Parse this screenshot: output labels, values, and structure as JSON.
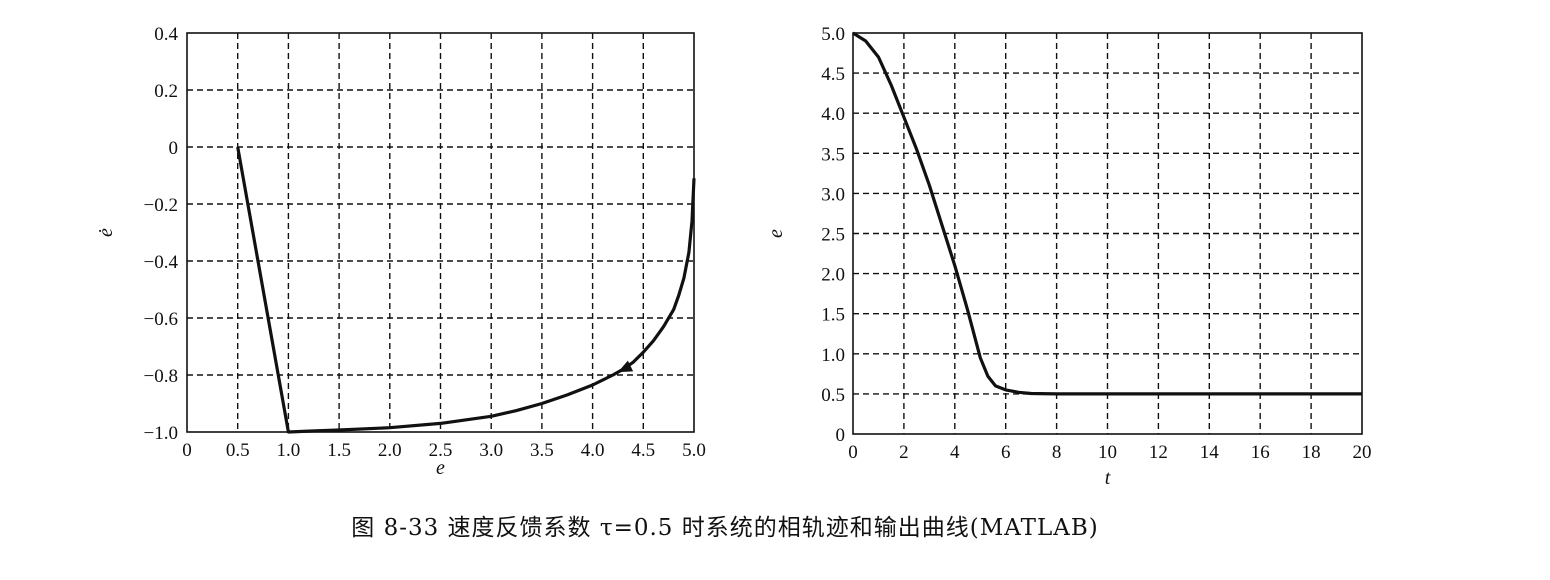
{
  "caption": "图 8-33   速度反馈系数 τ=0.5 时系统的相轨迹和输出曲线(MATLAB)",
  "chart_data": [
    {
      "type": "line",
      "title": "",
      "xlabel": "e",
      "ylabel": "ė",
      "xlim": [
        0,
        5.0
      ],
      "ylim": [
        -1.0,
        0.4
      ],
      "x_ticks": [
        0,
        0.5,
        1.0,
        1.5,
        2.0,
        2.5,
        3.0,
        3.5,
        4.0,
        4.5,
        5.0
      ],
      "x_tick_labels": [
        "0",
        "0.5",
        "1.0",
        "1.5",
        "2.0",
        "2.5",
        "3.0",
        "3.5",
        "4.0",
        "4.5",
        "5.0"
      ],
      "y_ticks": [
        -1.0,
        -0.8,
        -0.6,
        -0.4,
        -0.2,
        0,
        0.2,
        0.4
      ],
      "y_tick_labels": [
        "−1.0",
        "−0.8",
        "−0.6",
        "−0.4",
        "−0.2",
        "0",
        "0.2",
        "0.4"
      ],
      "grid": true,
      "series": [
        {
          "x": [
            5.0,
            4.98,
            4.95,
            4.9,
            4.85,
            4.8,
            4.7,
            4.6,
            4.5,
            4.4,
            4.3,
            4.2,
            4.0,
            3.75,
            3.5,
            3.25,
            3.0,
            2.5,
            2.0,
            1.5,
            1.2,
            1.0,
            0.5
          ],
          "y": [
            -0.11,
            -0.26,
            -0.37,
            -0.46,
            -0.52,
            -0.57,
            -0.63,
            -0.68,
            -0.72,
            -0.755,
            -0.78,
            -0.8,
            -0.835,
            -0.87,
            -0.9,
            -0.925,
            -0.945,
            -0.97,
            -0.985,
            -0.993,
            -0.997,
            -1.0,
            0
          ]
        }
      ],
      "annotations": [
        "arrow on curve near e=4.25 pointing toward decreasing e"
      ]
    },
    {
      "type": "line",
      "title": "",
      "xlabel": "t",
      "ylabel": "e",
      "xlim": [
        0,
        20
      ],
      "ylim": [
        0,
        5.0
      ],
      "x_ticks": [
        0,
        2,
        4,
        6,
        8,
        10,
        12,
        14,
        16,
        18,
        20
      ],
      "x_tick_labels": [
        "0",
        "2",
        "4",
        "6",
        "8",
        "10",
        "12",
        "14",
        "16",
        "18",
        "20"
      ],
      "y_ticks": [
        0,
        0.5,
        1.0,
        1.5,
        2.0,
        2.5,
        3.0,
        3.5,
        4.0,
        4.5,
        5.0
      ],
      "y_tick_labels": [
        "0",
        "0.5",
        "1.0",
        "1.5",
        "2.0",
        "2.5",
        "3.0",
        "3.5",
        "4.0",
        "4.5",
        "5.0"
      ],
      "grid": true,
      "series": [
        {
          "x": [
            0,
            0.5,
            1.0,
            1.5,
            2.0,
            2.5,
            3.0,
            3.5,
            4.0,
            4.5,
            5.0,
            5.3,
            5.6,
            6.0,
            6.5,
            7.0,
            8.0,
            10,
            12,
            14,
            16,
            18,
            20
          ],
          "y": [
            5.0,
            4.9,
            4.7,
            4.35,
            3.95,
            3.55,
            3.1,
            2.6,
            2.1,
            1.55,
            0.95,
            0.72,
            0.6,
            0.55,
            0.52,
            0.505,
            0.5,
            0.5,
            0.5,
            0.5,
            0.5,
            0.5,
            0.5
          ]
        }
      ]
    }
  ]
}
